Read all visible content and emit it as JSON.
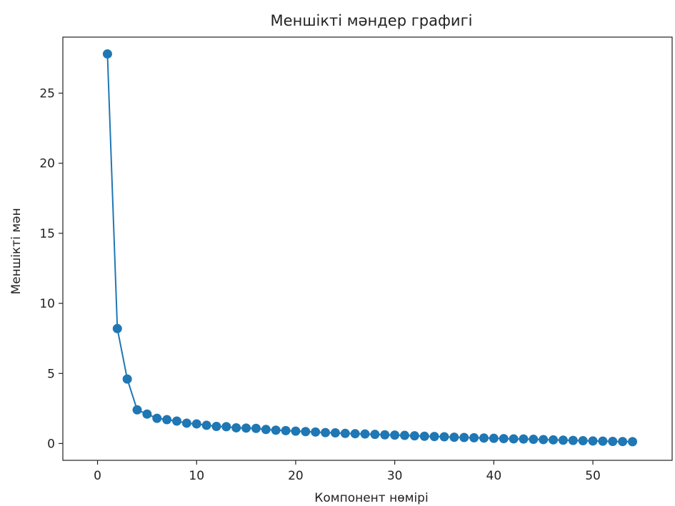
{
  "chart_data": {
    "type": "line",
    "title": "Меншікті мәндер графигі",
    "xlabel": "Компонент нөмірі",
    "ylabel": "Меншікті мән",
    "xlim": [
      -3.5,
      58
    ],
    "ylim": [
      -1.2,
      29.0
    ],
    "x_ticks": [
      0,
      10,
      20,
      30,
      40,
      50
    ],
    "y_ticks": [
      0,
      5,
      10,
      15,
      20,
      25
    ],
    "grid": false,
    "legend": "none",
    "markers": true,
    "series_color": "#1f77b4",
    "series": [
      {
        "x": [
          1,
          2,
          3,
          4,
          5,
          6,
          7,
          8,
          9,
          10,
          11,
          12,
          13,
          14,
          15,
          16,
          17,
          18,
          19,
          20,
          21,
          22,
          23,
          24,
          25,
          26,
          27,
          28,
          29,
          30,
          31,
          32,
          33,
          34,
          35,
          36,
          37,
          38,
          39,
          40,
          41,
          42,
          43,
          44,
          45,
          46,
          47,
          48,
          49,
          50,
          51,
          52,
          53,
          54
        ],
        "values": [
          27.8,
          8.2,
          4.6,
          2.4,
          2.1,
          1.8,
          1.7,
          1.6,
          1.45,
          1.4,
          1.3,
          1.22,
          1.2,
          1.12,
          1.1,
          1.08,
          1.0,
          0.95,
          0.92,
          0.88,
          0.85,
          0.82,
          0.78,
          0.76,
          0.72,
          0.7,
          0.68,
          0.65,
          0.62,
          0.6,
          0.58,
          0.55,
          0.52,
          0.5,
          0.48,
          0.45,
          0.43,
          0.41,
          0.39,
          0.37,
          0.35,
          0.33,
          0.32,
          0.3,
          0.28,
          0.26,
          0.24,
          0.22,
          0.2,
          0.18,
          0.17,
          0.15,
          0.14,
          0.13
        ]
      }
    ]
  }
}
